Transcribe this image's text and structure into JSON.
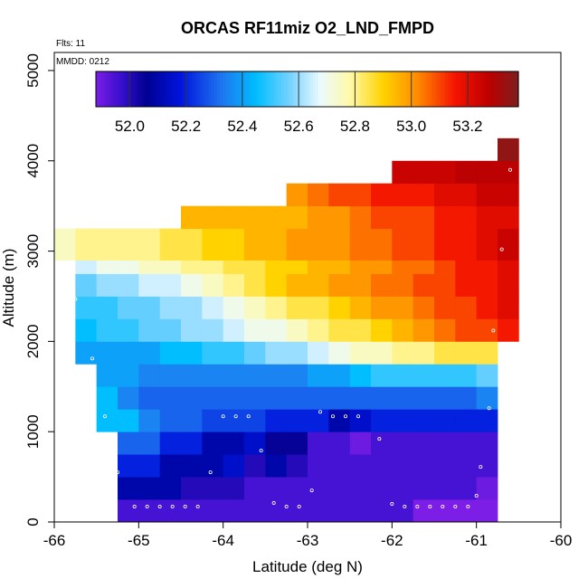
{
  "chart_data": {
    "type": "heatmap",
    "title": "ORCAS RF11miz O2_LND_FMPD",
    "annotations": {
      "flights": "Flts: 11",
      "date": "MMDD: 0212"
    },
    "xlabel": "Latitude (deg N)",
    "ylabel": "Altitude (m)",
    "xlim": [
      -66,
      -60
    ],
    "ylim": [
      0,
      5200
    ],
    "xticks": [
      -66,
      -65,
      -64,
      -63,
      -62,
      -61,
      -60
    ],
    "yticks": [
      0,
      1000,
      2000,
      3000,
      4000,
      5000
    ],
    "colorbar": {
      "min": 51.88,
      "max": 53.38,
      "ticks": [
        52.0,
        52.2,
        52.4,
        52.6,
        52.8,
        53.0,
        53.2
      ],
      "tick_labels": [
        "52.0",
        "52.2",
        "52.4",
        "52.6",
        "52.8",
        "53.0",
        "53.2"
      ]
    },
    "grid": {
      "lat_start": -66.0,
      "lat_step": 0.25,
      "alt_step": 250,
      "rows": [
        {
          "alt": 0,
          "lat_min": -65.25,
          "lat_max": -60.75,
          "values": [
            51.95,
            51.95,
            51.95,
            51.95,
            51.95,
            51.95,
            51.95,
            51.95,
            51.95,
            51.95,
            51.95,
            51.95,
            51.95,
            51.95,
            51.85,
            51.85,
            51.85,
            51.85
          ]
        },
        {
          "alt": 250,
          "lat_min": -65.25,
          "lat_max": -60.75,
          "values": [
            52.1,
            52.1,
            52.1,
            52.0,
            52.0,
            52.0,
            51.95,
            51.95,
            51.95,
            51.95,
            51.95,
            51.95,
            51.95,
            51.95,
            51.95,
            51.95,
            51.95,
            51.9
          ]
        },
        {
          "alt": 500,
          "lat_min": -65.25,
          "lat_max": -60.75,
          "values": [
            52.2,
            52.2,
            52.1,
            52.1,
            52.1,
            52.15,
            52.0,
            52.1,
            52.0,
            51.95,
            51.95,
            51.95,
            51.95,
            51.95,
            51.95,
            51.95,
            51.95,
            51.95
          ]
        },
        {
          "alt": 750,
          "lat_min": -65.25,
          "lat_max": -60.75,
          "values": [
            52.3,
            52.3,
            52.2,
            52.2,
            52.1,
            52.1,
            52.15,
            52.05,
            52.05,
            51.95,
            51.95,
            51.9,
            51.95,
            51.95,
            51.95,
            51.95,
            51.95,
            51.95
          ]
        },
        {
          "alt": 1000,
          "lat_min": -65.5,
          "lat_max": -60.75,
          "values": [
            52.45,
            52.45,
            52.35,
            52.3,
            52.3,
            52.25,
            52.25,
            52.25,
            52.2,
            52.2,
            52.2,
            52.1,
            52.15,
            52.2,
            52.2,
            52.2,
            52.2,
            52.2,
            52.2
          ]
        },
        {
          "alt": 1250,
          "lat_min": -65.5,
          "lat_max": -60.75,
          "values": [
            52.45,
            52.35,
            52.3,
            52.3,
            52.3,
            52.3,
            52.3,
            52.3,
            52.3,
            52.3,
            52.3,
            52.3,
            52.3,
            52.3,
            52.3,
            52.3,
            52.3,
            52.3,
            52.35
          ]
        },
        {
          "alt": 1500,
          "lat_min": -65.5,
          "lat_max": -60.75,
          "values": [
            52.4,
            52.4,
            52.35,
            52.35,
            52.35,
            52.35,
            52.35,
            52.35,
            52.35,
            52.35,
            52.4,
            52.4,
            52.45,
            52.5,
            52.5,
            52.5,
            52.5,
            52.5,
            52.55
          ]
        },
        {
          "alt": 1750,
          "lat_min": -65.75,
          "lat_max": -60.75,
          "values": [
            52.4,
            52.4,
            52.4,
            52.4,
            52.45,
            52.45,
            52.5,
            52.5,
            52.55,
            52.6,
            52.6,
            52.65,
            52.7,
            52.75,
            52.75,
            52.8,
            52.8,
            52.85,
            52.85,
            52.85
          ]
        },
        {
          "alt": 2000,
          "lat_min": -65.75,
          "lat_max": -60.5,
          "values": [
            52.45,
            52.5,
            52.5,
            52.55,
            52.55,
            52.6,
            52.6,
            52.65,
            52.7,
            52.7,
            52.75,
            52.8,
            52.85,
            52.85,
            52.9,
            52.95,
            53.0,
            53.05,
            53.1,
            53.1,
            53.15
          ]
        },
        {
          "alt": 2250,
          "lat_min": -65.75,
          "lat_max": -60.5,
          "values": [
            52.5,
            52.5,
            52.55,
            52.55,
            52.6,
            52.6,
            52.65,
            52.7,
            52.75,
            52.8,
            52.85,
            52.85,
            52.9,
            52.95,
            53.0,
            53.0,
            53.05,
            53.1,
            53.1,
            53.15,
            53.2
          ]
        },
        {
          "alt": 2500,
          "lat_min": -65.75,
          "lat_max": -60.5,
          "values": [
            52.55,
            52.6,
            52.6,
            52.65,
            52.65,
            52.7,
            52.75,
            52.8,
            52.85,
            52.9,
            52.95,
            52.95,
            53.0,
            53.0,
            53.05,
            53.05,
            53.1,
            53.1,
            53.15,
            53.15,
            53.2
          ]
        },
        {
          "alt": 2750,
          "lat_min": -65.75,
          "lat_max": -60.5,
          "values": [
            52.65,
            52.7,
            52.7,
            52.75,
            52.75,
            52.8,
            52.8,
            52.85,
            52.85,
            52.9,
            52.9,
            52.95,
            52.95,
            53.0,
            53.0,
            53.05,
            53.05,
            53.1,
            53.15,
            53.15,
            53.2
          ]
        },
        {
          "alt": 2900,
          "lat_min": -66.0,
          "lat_max": -60.5,
          "values": [
            52.75,
            52.8,
            52.8,
            52.8,
            52.8,
            52.85,
            52.85,
            52.9,
            52.9,
            52.95,
            52.95,
            53.0,
            53.0,
            53.0,
            53.05,
            53.05,
            53.1,
            53.1,
            53.15,
            53.15,
            53.2,
            53.25
          ]
        },
        {
          "alt": 3250,
          "lat_min": -64.5,
          "lat_max": -60.5,
          "values": [
            52.95,
            52.95,
            52.95,
            52.95,
            52.95,
            52.95,
            53.0,
            53.0,
            53.05,
            53.1,
            53.1,
            53.1,
            53.15,
            53.15,
            53.2,
            53.2
          ]
        },
        {
          "alt": 3500,
          "lat_min": -63.25,
          "lat_max": -60.5,
          "values": [
            53.0,
            53.05,
            53.1,
            53.1,
            53.15,
            53.15,
            53.15,
            53.2,
            53.2,
            53.25,
            53.25
          ]
        },
        {
          "alt": 3750,
          "lat_min": -62.0,
          "lat_max": -60.5,
          "values": [
            53.25,
            53.25,
            53.25,
            53.28,
            53.28,
            53.28
          ]
        },
        {
          "alt": 4000,
          "lat_min": -60.75,
          "lat_max": -60.5,
          "values": [
            53.35
          ]
        }
      ]
    },
    "observations": [
      [
        -65.05,
        170
      ],
      [
        -64.9,
        170
      ],
      [
        -64.75,
        170
      ],
      [
        -64.6,
        170
      ],
      [
        -64.45,
        170
      ],
      [
        -64.3,
        170
      ],
      [
        -63.4,
        210
      ],
      [
        -63.25,
        170
      ],
      [
        -63.1,
        170
      ],
      [
        -62.0,
        200
      ],
      [
        -61.85,
        170
      ],
      [
        -61.7,
        170
      ],
      [
        -61.55,
        170
      ],
      [
        -61.4,
        170
      ],
      [
        -61.25,
        170
      ],
      [
        -61.1,
        170
      ],
      [
        -61.0,
        290
      ],
      [
        -62.95,
        350
      ],
      [
        -65.25,
        550
      ],
      [
        -64.15,
        550
      ],
      [
        -60.95,
        610
      ],
      [
        -63.55,
        790
      ],
      [
        -62.15,
        920
      ],
      [
        -65.4,
        1170
      ],
      [
        -64.0,
        1170
      ],
      [
        -63.85,
        1170
      ],
      [
        -63.7,
        1170
      ],
      [
        -62.85,
        1220
      ],
      [
        -62.7,
        1170
      ],
      [
        -62.55,
        1170
      ],
      [
        -62.4,
        1170
      ],
      [
        -60.85,
        1260
      ],
      [
        -65.55,
        1810
      ],
      [
        -60.8,
        2120
      ],
      [
        -65.75,
        2470
      ],
      [
        -60.7,
        3020
      ],
      [
        -60.6,
        3900
      ]
    ]
  }
}
